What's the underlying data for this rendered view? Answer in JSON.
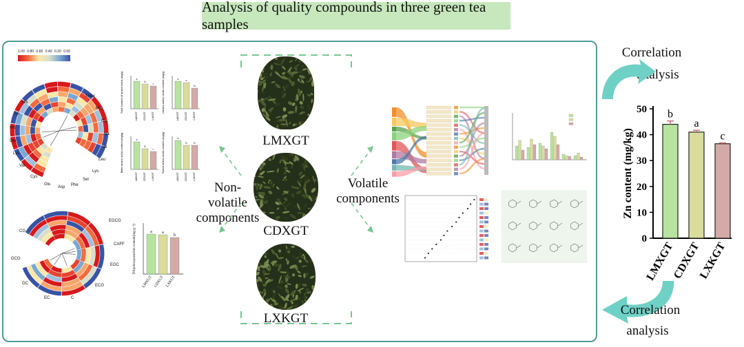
{
  "title": "Analysis of quality compounds in three green tea samples",
  "samples": [
    "LMXGT",
    "CDXGT",
    "LXKGT"
  ],
  "labels": {
    "nonvolatile_1": "Non-volatile",
    "nonvolatile_2": "components",
    "volatile_1": "Volatile",
    "volatile_2": "components",
    "corr_top_1": "Correlation",
    "corr_top_2": "analysis",
    "corr_bottom_1": "Correlation",
    "corr_bottom_2": "analysis"
  },
  "heatmap_scale": [
    "1.00",
    "0.80",
    "0.60",
    "0.40",
    "0.20",
    "0.00"
  ],
  "heatmap1_labels": [
    "Thea",
    "Met",
    "Gly",
    "Ala",
    "Ile",
    "Leu",
    "Lys",
    "Ser",
    "Phe",
    "Asp",
    "Glu",
    "Cys",
    "Val",
    "Lys",
    "Glu",
    "Pro",
    "Tyr",
    "His"
  ],
  "heatmap2_labels": [
    "EGCG",
    "CAFF",
    "EGC",
    "ECG",
    "C",
    "EC",
    "GC",
    "GCG",
    "CG"
  ],
  "bar_small_1": {
    "ylabel": "Total content of amino acids (mg/g)",
    "letters": [
      "a",
      "b",
      "c"
    ]
  },
  "bar_small_2": {
    "ylabel": "Umami amino acids content (mg/g)",
    "letters": [
      "a",
      "a",
      "b"
    ]
  },
  "bar_small_3": {
    "ylabel": "Bitter amino acids content (mg/g)",
    "letters": [
      "a",
      "b",
      "c"
    ]
  },
  "bar_small_4": {
    "ylabel": "Sweet amino acids content (mg/g)",
    "letters": [
      "a",
      "b",
      "b"
    ]
  },
  "bar_small_5": {
    "ylabel": "Trihydroxycatechin content(mg·g⁻¹)",
    "letters": [
      "a",
      "a",
      "b"
    ]
  },
  "colors": {
    "accent": "#4f9a96",
    "title_bg": "#c7e8bd",
    "bar1": "#b7e39f",
    "bar2": "#d9dc9a",
    "bar3": "#d3aaa7",
    "arrow": "#6fd0c6",
    "dash": "#78c68e"
  },
  "chart_data": {
    "type": "bar",
    "categories": [
      "LMXGT",
      "CDXGT",
      "LXKGT"
    ],
    "values": [
      44,
      41,
      36.5
    ],
    "errors": [
      1.3,
      0.7,
      0.3
    ],
    "letters": [
      "b",
      "a",
      "c"
    ],
    "ylabel": "Zn content (mg/kg)",
    "xlabel": "",
    "ylim": [
      0,
      50
    ],
    "yticks": [
      0,
      10,
      20,
      30,
      40,
      50
    ],
    "colors": [
      "#b7e39f",
      "#d9dc9a",
      "#d3aaa7"
    ]
  }
}
